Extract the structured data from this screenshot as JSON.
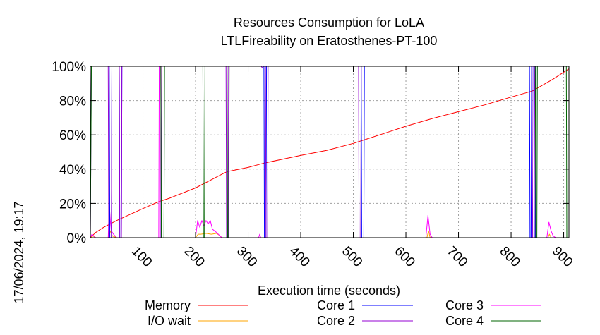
{
  "chart_data": {
    "type": "line",
    "title": "Resources Consumption for LoLA",
    "subtitle": "LTLFireability on Eratosthenes-PT-100",
    "xlabel": "Execution time (seconds)",
    "ylabel": "",
    "side_label": "17/06/2024, 19:17",
    "xlim": [
      0,
      910
    ],
    "ylim": [
      0,
      100
    ],
    "x_ticks": [
      100,
      200,
      300,
      400,
      500,
      600,
      700,
      800,
      900
    ],
    "y_ticks": [
      0,
      20,
      40,
      60,
      80,
      100
    ],
    "y_tick_labels": [
      "0%",
      "20%",
      "40%",
      "60%",
      "80%",
      "100%"
    ],
    "grid": true,
    "legend_position": "bottom",
    "series": [
      {
        "name": "Memory",
        "color": "#ff0000",
        "points": [
          [
            0,
            0
          ],
          [
            10,
            3
          ],
          [
            25,
            6
          ],
          [
            50,
            10
          ],
          [
            100,
            17
          ],
          [
            130,
            21
          ],
          [
            150,
            23
          ],
          [
            200,
            29
          ],
          [
            250,
            37
          ],
          [
            260,
            38.5
          ],
          [
            300,
            41
          ],
          [
            330,
            43.5
          ],
          [
            400,
            48
          ],
          [
            450,
            51
          ],
          [
            500,
            55
          ],
          [
            520,
            57
          ],
          [
            560,
            61
          ],
          [
            600,
            65
          ],
          [
            650,
            69.5
          ],
          [
            700,
            73.5
          ],
          [
            750,
            77.5
          ],
          [
            800,
            82
          ],
          [
            840,
            85.5
          ],
          [
            860,
            89
          ],
          [
            880,
            92.5
          ],
          [
            910,
            98.5
          ]
        ]
      },
      {
        "name": "I/O wait",
        "color": "#ffa500",
        "points": [
          [
            0,
            0
          ],
          [
            5,
            1
          ],
          [
            10,
            0
          ],
          [
            35,
            0
          ],
          [
            38,
            4
          ],
          [
            42,
            1
          ],
          [
            50,
            0
          ],
          [
            200,
            0
          ],
          [
            205,
            2
          ],
          [
            210,
            2
          ],
          [
            220,
            2.5
          ],
          [
            230,
            2
          ],
          [
            240,
            2.5
          ],
          [
            245,
            1.5
          ],
          [
            250,
            0
          ],
          [
            640,
            0
          ],
          [
            643,
            4
          ],
          [
            646,
            0
          ],
          [
            870,
            0
          ],
          [
            873,
            2
          ],
          [
            876,
            0
          ],
          [
            910,
            0
          ]
        ]
      },
      {
        "name": "Core 1",
        "color": "#0000ff",
        "points": [
          [
            0,
            100
          ],
          [
            36,
            100
          ],
          [
            37,
            0
          ],
          [
            40,
            0
          ],
          [
            41,
            100
          ],
          [
            55,
            100
          ],
          [
            56,
            0
          ],
          [
            59,
            0
          ],
          [
            60,
            100
          ],
          [
            330,
            100
          ],
          [
            331,
            0
          ],
          [
            334,
            0
          ],
          [
            335,
            100
          ],
          [
            515,
            100
          ],
          [
            516,
            0
          ],
          [
            520,
            0
          ],
          [
            521,
            100
          ],
          [
            835,
            100
          ],
          [
            836,
            0
          ],
          [
            838,
            0
          ],
          [
            839,
            100
          ],
          [
            843,
            100
          ],
          [
            844,
            0
          ],
          [
            846,
            0
          ],
          [
            847,
            100
          ],
          [
            910,
            100
          ],
          [
            911,
            0
          ]
        ]
      },
      {
        "name": "Core 2",
        "color": "#9400d3",
        "points": [
          [
            0,
            0
          ],
          [
            2,
            100
          ],
          [
            34,
            100
          ],
          [
            35,
            0
          ],
          [
            40,
            0
          ],
          [
            41,
            100
          ],
          [
            55,
            100
          ],
          [
            56,
            0
          ],
          [
            59,
            0
          ],
          [
            60,
            100
          ],
          [
            132,
            100
          ],
          [
            133,
            0
          ],
          [
            135,
            0
          ],
          [
            136,
            100
          ],
          [
            258,
            100
          ],
          [
            259,
            0
          ],
          [
            262,
            0
          ],
          [
            263,
            100
          ],
          [
            325,
            100
          ],
          [
            327,
            99
          ],
          [
            329,
            100
          ],
          [
            333,
            100
          ],
          [
            334,
            0
          ],
          [
            337,
            0
          ],
          [
            338,
            100
          ],
          [
            510,
            100
          ],
          [
            511,
            0
          ],
          [
            514,
            0
          ],
          [
            515,
            100
          ],
          [
            840,
            100
          ],
          [
            841,
            0
          ],
          [
            844,
            0
          ],
          [
            845,
            100
          ],
          [
            910,
            100
          ],
          [
            911,
            0
          ]
        ]
      },
      {
        "name": "Core 3",
        "color": "#ff00ff",
        "points": [
          [
            0,
            0
          ],
          [
            3,
            2
          ],
          [
            10,
            0
          ],
          [
            34,
            0
          ],
          [
            36,
            20
          ],
          [
            38,
            10
          ],
          [
            40,
            4
          ],
          [
            44,
            2
          ],
          [
            50,
            0
          ],
          [
            130,
            0
          ],
          [
            131,
            100
          ],
          [
            134,
            100
          ],
          [
            135,
            0
          ],
          [
            200,
            0
          ],
          [
            204,
            10
          ],
          [
            208,
            6
          ],
          [
            212,
            10
          ],
          [
            216,
            7
          ],
          [
            220,
            10
          ],
          [
            224,
            8
          ],
          [
            228,
            10
          ],
          [
            232,
            5
          ],
          [
            240,
            3
          ],
          [
            250,
            0
          ],
          [
            320,
            0
          ],
          [
            322,
            2
          ],
          [
            324,
            0
          ],
          [
            638,
            0
          ],
          [
            642,
            13
          ],
          [
            646,
            2
          ],
          [
            650,
            0
          ],
          [
            868,
            0
          ],
          [
            872,
            9
          ],
          [
            876,
            4
          ],
          [
            880,
            1
          ],
          [
            885,
            0
          ],
          [
            910,
            0
          ]
        ]
      },
      {
        "name": "Core 4",
        "color": "#006400",
        "points": [
          [
            0,
            0
          ],
          [
            2,
            100
          ],
          [
            134,
            100
          ],
          [
            135,
            0
          ],
          [
            140,
            0
          ],
          [
            141,
            100
          ],
          [
            214,
            100
          ],
          [
            215,
            0
          ],
          [
            217,
            0
          ],
          [
            218,
            100
          ],
          [
            260,
            100
          ],
          [
            261,
            0
          ],
          [
            263,
            0
          ],
          [
            264,
            100
          ],
          [
            846,
            100
          ],
          [
            847,
            0
          ],
          [
            849,
            0
          ],
          [
            850,
            100
          ],
          [
            905,
            100
          ],
          [
            906,
            0
          ],
          [
            910,
            0
          ]
        ]
      }
    ]
  }
}
